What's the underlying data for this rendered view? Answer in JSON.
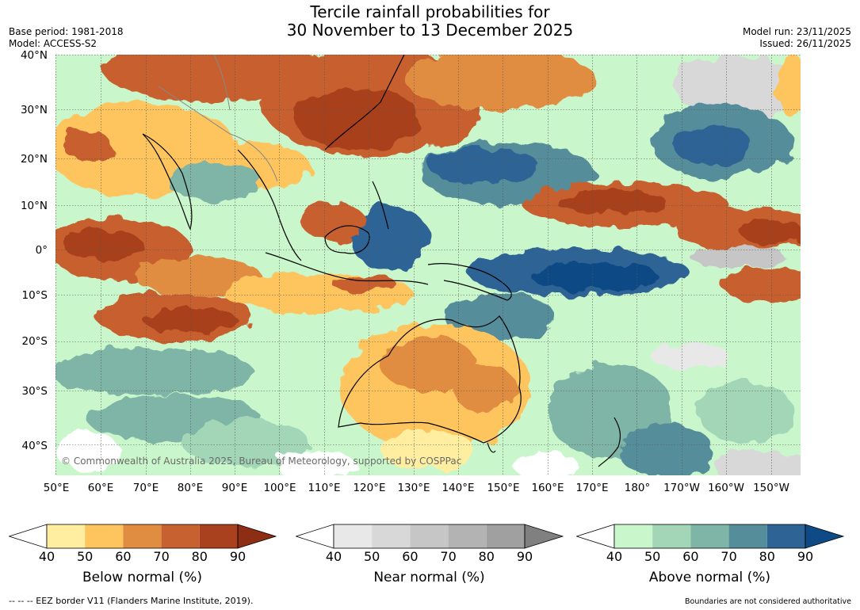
{
  "title_line1": "Tercile rainfall probabilities for",
  "title_line2": "30 November to 13 December 2025",
  "base_period": "Base period: 1981-2018",
  "model": "Model: ACCESS-S2",
  "model_run": "Model run: 23/11/2025",
  "issued": "Issued: 26/11/2025",
  "lat_labels": [
    "40°N",
    "30°N",
    "20°N",
    "10°N",
    "0°",
    "10°S",
    "20°S",
    "30°S",
    "40°S"
  ],
  "lon_labels": [
    "50°E",
    "60°E",
    "70°E",
    "80°E",
    "90°E",
    "100°E",
    "110°E",
    "120°E",
    "130°E",
    "140°E",
    "150°E",
    "160°E",
    "170°E",
    "180°",
    "170°W",
    "160°W",
    "150°W"
  ],
  "copyright": "© Commonwealth of Australia 2025, Bureau of Meteorology, supported by COSPPac",
  "colorbars": [
    {
      "label": "Below normal (%)",
      "ticks": [
        "40",
        "50",
        "60",
        "70",
        "80",
        "90"
      ],
      "colors": [
        "#ffffff",
        "#ffeda0",
        "#fec55e",
        "#e08d42",
        "#c7612f",
        "#a9401e",
        "#8c2d14"
      ]
    },
    {
      "label": "Near normal (%)",
      "ticks": [
        "40",
        "50",
        "60",
        "70",
        "80",
        "90"
      ],
      "colors": [
        "#ffffff",
        "#e8e8e8",
        "#d8d8d8",
        "#c6c6c6",
        "#b3b3b3",
        "#a0a0a0",
        "#808080"
      ]
    },
    {
      "label": "Above normal (%)",
      "ticks": [
        "40",
        "50",
        "60",
        "70",
        "80",
        "90"
      ],
      "colors": [
        "#ffffff",
        "#c9f7cb",
        "#a2d6b7",
        "#7eb5a6",
        "#568d9a",
        "#2e6395",
        "#0e4a85"
      ]
    }
  ],
  "footer_left": "--  --  -- EEZ border V11 (Flanders Marine Institute, 2019).",
  "footer_right": "Boundaries are not considered authoritative"
}
